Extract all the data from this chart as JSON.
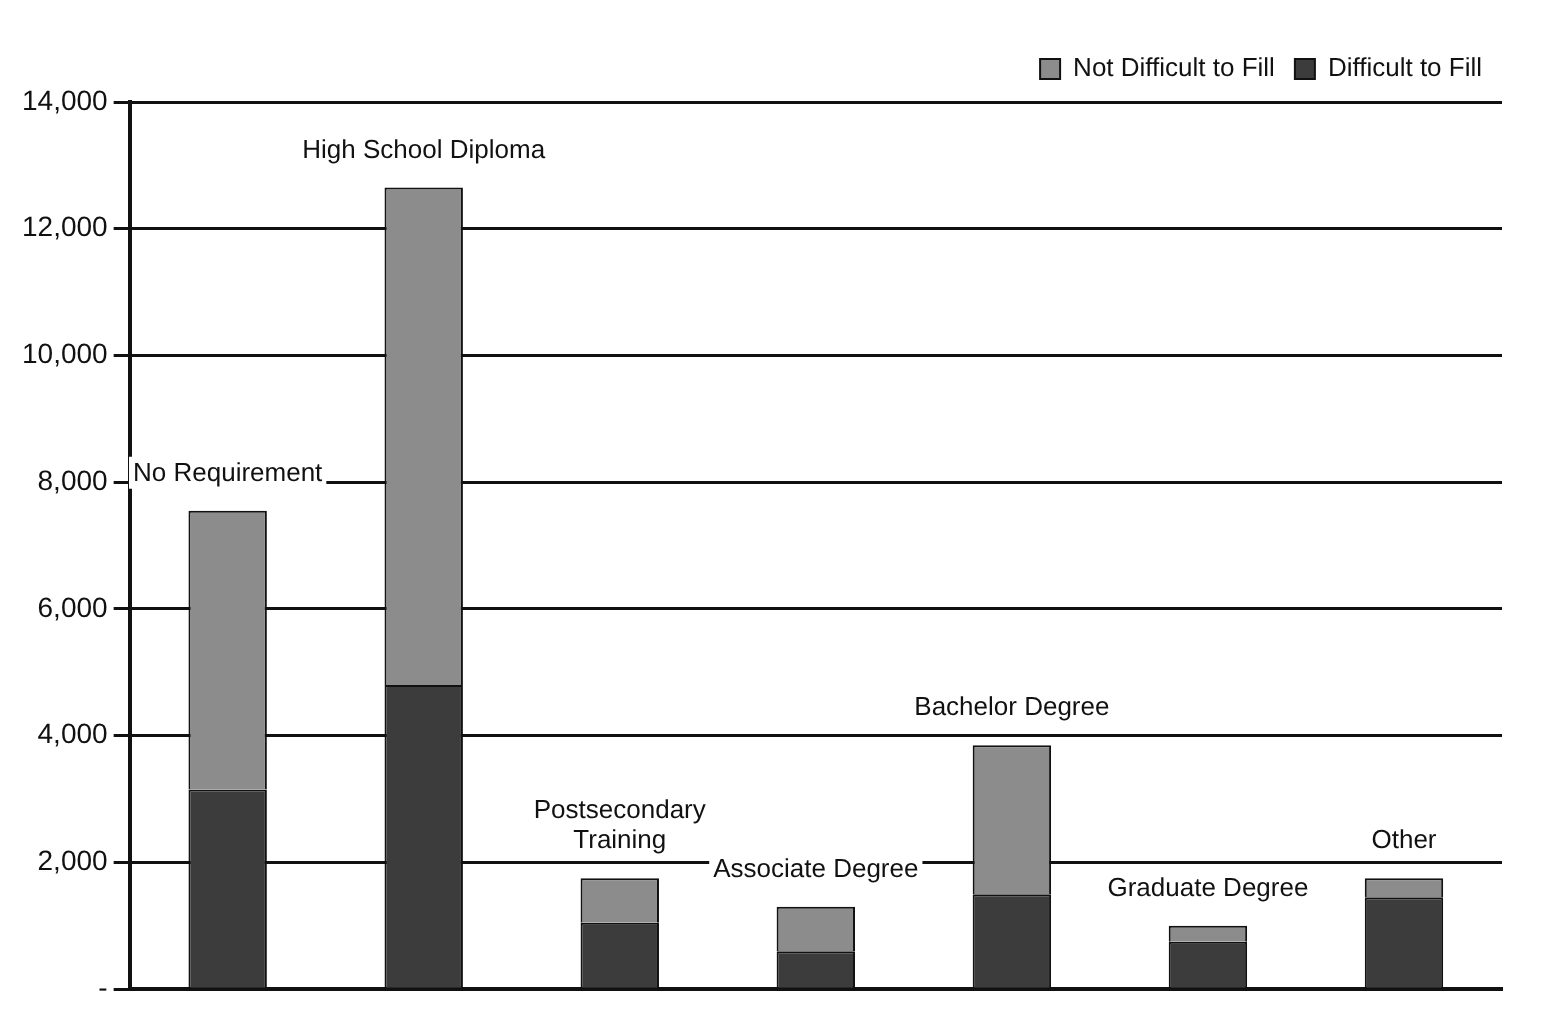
{
  "chart_data": {
    "type": "bar",
    "stacked": true,
    "categories": [
      "No Requirement",
      "High School Diploma",
      "Postsecondary Training",
      "Associate Degree",
      "Bachelor Degree",
      "Graduate Degree",
      "Other"
    ],
    "series": [
      {
        "name": "Difficult to Fill",
        "color": "#3c3c3c",
        "values": [
          3150,
          4800,
          1050,
          600,
          1500,
          750,
          1450
        ]
      },
      {
        "name": "Not Difficult to Fill",
        "color": "#8c8c8c",
        "values": [
          4400,
          7850,
          700,
          700,
          2350,
          250,
          300
        ]
      }
    ],
    "ylim": [
      0,
      14000
    ],
    "yticks": [
      {
        "value": 0,
        "label": "-"
      },
      {
        "value": 2000,
        "label": "2,000"
      },
      {
        "value": 4000,
        "label": "4,000"
      },
      {
        "value": 6000,
        "label": "6,000"
      },
      {
        "value": 8000,
        "label": "8,000"
      },
      {
        "value": 10000,
        "label": "10,000"
      },
      {
        "value": 12000,
        "label": "12,000"
      },
      {
        "value": 14000,
        "label": "14,000"
      }
    ],
    "grid": "y",
    "legend": "top right"
  }
}
